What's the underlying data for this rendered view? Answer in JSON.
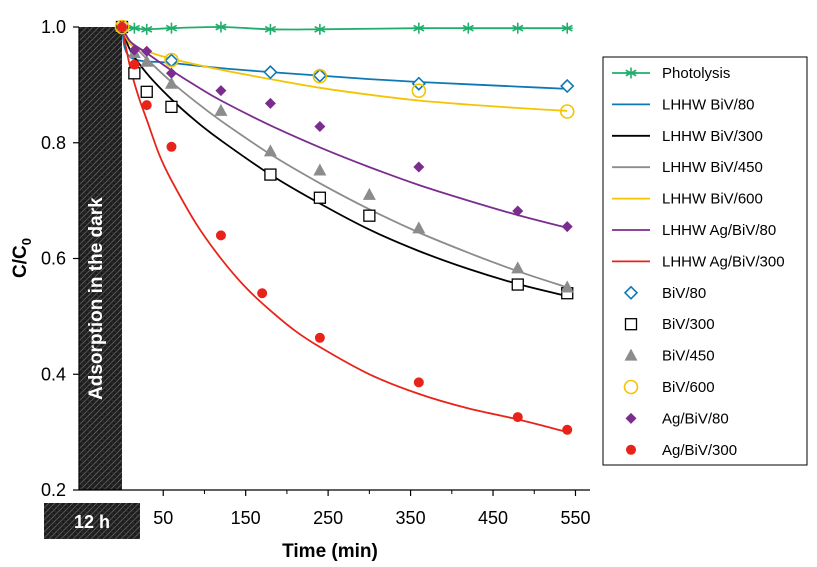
{
  "chart_data": {
    "type": "scatter",
    "xlabel": "Time (min)",
    "ylabel_main": "C/C",
    "ylabel_sub": "0",
    "xlim": [
      -150,
      560
    ],
    "ylim": [
      0.2,
      1.0
    ],
    "x_ticks": [
      50,
      150,
      250,
      350,
      450,
      550
    ],
    "y_ticks": [
      0.2,
      0.4,
      0.6,
      0.8,
      1.0
    ],
    "y_tick_labels": [
      "0.2",
      "0.4",
      "0.6",
      "0.8",
      "1.0"
    ],
    "dark_region_label": "Adsorption in the dark",
    "dark_time_label": "12 h",
    "legend_position": "right",
    "lines": [
      {
        "name": "Photolysis",
        "color": "#1fae6b",
        "marker": "asterisk",
        "points": [
          [
            0,
            1.0
          ],
          [
            15,
            0.998
          ],
          [
            30,
            0.996
          ],
          [
            60,
            0.998
          ],
          [
            120,
            1.0
          ],
          [
            180,
            0.996
          ],
          [
            240,
            0.996
          ],
          [
            360,
            0.998
          ],
          [
            420,
            0.998
          ],
          [
            480,
            0.998
          ],
          [
            540,
            0.998
          ]
        ]
      },
      {
        "name": "LHHW BiV/80",
        "color": "#0e78b6",
        "points": [
          [
            0,
            1.0
          ],
          [
            10,
            0.948
          ],
          [
            60,
            0.938
          ],
          [
            120,
            0.929
          ],
          [
            180,
            0.922
          ],
          [
            240,
            0.916
          ],
          [
            300,
            0.91
          ],
          [
            360,
            0.905
          ],
          [
            420,
            0.901
          ],
          [
            480,
            0.897
          ],
          [
            540,
            0.893
          ]
        ]
      },
      {
        "name": "LHHW BiV/300",
        "color": "#000000",
        "points": [
          [
            0,
            1.0
          ],
          [
            10,
            0.96
          ],
          [
            30,
            0.92
          ],
          [
            60,
            0.875
          ],
          [
            90,
            0.837
          ],
          [
            120,
            0.804
          ],
          [
            180,
            0.745
          ],
          [
            240,
            0.695
          ],
          [
            300,
            0.65
          ],
          [
            360,
            0.613
          ],
          [
            420,
            0.582
          ],
          [
            480,
            0.556
          ],
          [
            540,
            0.535
          ]
        ]
      },
      {
        "name": "LHHW BiV/450",
        "color": "#8c8c8c",
        "points": [
          [
            0,
            1.0
          ],
          [
            10,
            0.975
          ],
          [
            30,
            0.945
          ],
          [
            60,
            0.905
          ],
          [
            90,
            0.87
          ],
          [
            120,
            0.838
          ],
          [
            180,
            0.78
          ],
          [
            240,
            0.73
          ],
          [
            300,
            0.685
          ],
          [
            360,
            0.645
          ],
          [
            420,
            0.61
          ],
          [
            480,
            0.578
          ],
          [
            540,
            0.55
          ]
        ]
      },
      {
        "name": "LHHW BiV/600",
        "color": "#f5c400",
        "points": [
          [
            0,
            1.0
          ],
          [
            10,
            0.97
          ],
          [
            30,
            0.958
          ],
          [
            60,
            0.945
          ],
          [
            120,
            0.926
          ],
          [
            180,
            0.91
          ],
          [
            240,
            0.895
          ],
          [
            300,
            0.883
          ],
          [
            360,
            0.873
          ],
          [
            420,
            0.866
          ],
          [
            480,
            0.86
          ],
          [
            540,
            0.855
          ]
        ]
      },
      {
        "name": "LHHW Ag/BiV/80",
        "color": "#7b2d8e",
        "points": [
          [
            0,
            1.0
          ],
          [
            10,
            0.975
          ],
          [
            30,
            0.955
          ],
          [
            60,
            0.925
          ],
          [
            90,
            0.898
          ],
          [
            120,
            0.873
          ],
          [
            180,
            0.83
          ],
          [
            240,
            0.792
          ],
          [
            300,
            0.758
          ],
          [
            360,
            0.727
          ],
          [
            420,
            0.7
          ],
          [
            480,
            0.675
          ],
          [
            540,
            0.653
          ]
        ]
      },
      {
        "name": "LHHW Ag/BiV/300",
        "color": "#e8231a",
        "points": [
          [
            0,
            1.0
          ],
          [
            10,
            0.93
          ],
          [
            20,
            0.88
          ],
          [
            30,
            0.84
          ],
          [
            45,
            0.78
          ],
          [
            60,
            0.735
          ],
          [
            90,
            0.66
          ],
          [
            120,
            0.6
          ],
          [
            150,
            0.55
          ],
          [
            180,
            0.51
          ],
          [
            210,
            0.475
          ],
          [
            240,
            0.447
          ],
          [
            300,
            0.4
          ],
          [
            360,
            0.366
          ],
          [
            420,
            0.341
          ],
          [
            480,
            0.322
          ],
          [
            540,
            0.3
          ]
        ]
      }
    ],
    "series": [
      {
        "name": "BiV/80",
        "color": "#0e78b6",
        "marker": "diamond-open",
        "points": [
          [
            0,
            1.0
          ],
          [
            60,
            0.942
          ],
          [
            180,
            0.922
          ],
          [
            240,
            0.916
          ],
          [
            360,
            0.902
          ],
          [
            540,
            0.898
          ]
        ]
      },
      {
        "name": "BiV/300",
        "color": "#000000",
        "marker": "square-open",
        "points": [
          [
            0,
            1.0
          ],
          [
            15,
            0.92
          ],
          [
            30,
            0.888
          ],
          [
            60,
            0.862
          ],
          [
            180,
            0.745
          ],
          [
            240,
            0.705
          ],
          [
            300,
            0.674
          ],
          [
            480,
            0.555
          ],
          [
            540,
            0.54
          ]
        ]
      },
      {
        "name": "BiV/450",
        "color": "#8c8c8c",
        "marker": "triangle",
        "points": [
          [
            0,
            1.0
          ],
          [
            15,
            0.955
          ],
          [
            30,
            0.94
          ],
          [
            60,
            0.902
          ],
          [
            120,
            0.855
          ],
          [
            180,
            0.785
          ],
          [
            240,
            0.752
          ],
          [
            300,
            0.71
          ],
          [
            360,
            0.652
          ],
          [
            480,
            0.583
          ],
          [
            540,
            0.55
          ]
        ]
      },
      {
        "name": "BiV/600",
        "color": "#f5c400",
        "marker": "circle-open",
        "points": [
          [
            0,
            1.0
          ],
          [
            60,
            0.943
          ],
          [
            240,
            0.915
          ],
          [
            360,
            0.89
          ],
          [
            540,
            0.854
          ]
        ]
      },
      {
        "name": "Ag/BiV/80",
        "color": "#7b2d8e",
        "marker": "diamond",
        "points": [
          [
            0,
            1.0
          ],
          [
            15,
            0.96
          ],
          [
            30,
            0.958
          ],
          [
            60,
            0.92
          ],
          [
            120,
            0.89
          ],
          [
            180,
            0.868
          ],
          [
            240,
            0.828
          ],
          [
            360,
            0.758
          ],
          [
            480,
            0.682
          ],
          [
            540,
            0.655
          ]
        ]
      },
      {
        "name": "Ag/BiV/300",
        "color": "#e8231a",
        "marker": "circle",
        "points": [
          [
            0,
            1.0
          ],
          [
            15,
            0.935
          ],
          [
            30,
            0.865
          ],
          [
            60,
            0.793
          ],
          [
            120,
            0.64
          ],
          [
            170,
            0.54
          ],
          [
            240,
            0.463
          ],
          [
            360,
            0.386
          ],
          [
            480,
            0.326
          ],
          [
            540,
            0.304
          ]
        ]
      }
    ]
  }
}
